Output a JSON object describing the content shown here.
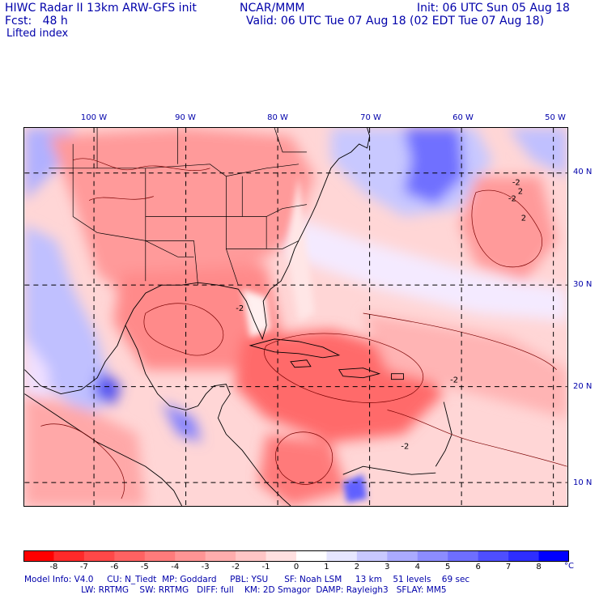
{
  "header": {
    "model_title": "HIWC Radar II 13km ARW-GFS init",
    "org": "NCAR/MMM",
    "init_line": "Init: 06 UTC Sun 05 Aug 18",
    "fcst_line": "Fcst:   48 h",
    "valid_line": "Valid: 06 UTC Tue 07 Aug 18 (02 EDT Tue 07 Aug 18)",
    "field": "Lifted index"
  },
  "map": {
    "lon_labels": [
      "100 W",
      "90 W",
      "80 W",
      "70 W",
      "60 W",
      "50 W"
    ],
    "lat_labels": [
      "40 N",
      "30 N",
      "20 N",
      "10 N"
    ],
    "contour_labels": [
      "-2",
      "-2",
      "-2",
      "-2",
      "-2",
      "2",
      "2"
    ]
  },
  "colorbar": {
    "ticks": [
      "-8",
      "-7",
      "-6",
      "-5",
      "-4",
      "-3",
      "-2",
      "-1",
      "0",
      "1",
      "2",
      "3",
      "4",
      "5",
      "6",
      "7",
      "8"
    ],
    "unit": "°C",
    "colors": [
      "#ff0000",
      "#ff2a2a",
      "#ff4848",
      "#ff6262",
      "#ff7b7b",
      "#ff9494",
      "#ffadad",
      "#ffc6c6",
      "#ffe0e0",
      "#ffffff",
      "#e6e6ff",
      "#c8c8ff",
      "#aaaaff",
      "#8c8cff",
      "#6e6eff",
      "#4e4eff",
      "#2e2eff",
      "#0000ff"
    ]
  },
  "model_info": {
    "line1": "Model Info: V4.0     CU: N_Tiedt  MP: Goddard     PBL: YSU      SF: Noah LSM     13 km    51 levels    69 sec",
    "line2": "                     LW: RRTMG    SW: RRTMG   DIFF: full    KM: 2D Smagor  DAMP: Rayleigh3   SFLAY: MM5"
  }
}
